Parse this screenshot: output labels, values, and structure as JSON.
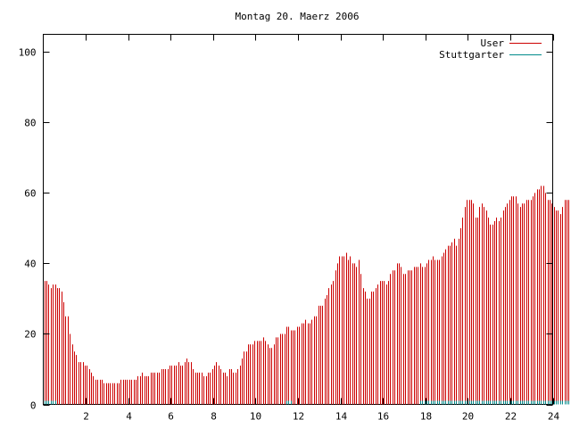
{
  "chart_data": {
    "type": "bar",
    "title": "Montag 20. Maerz 2006",
    "xlabel": "",
    "ylabel": "",
    "xlim": [
      0,
      24
    ],
    "ylim": [
      0,
      105
    ],
    "xticks": [
      2,
      4,
      6,
      8,
      10,
      12,
      14,
      16,
      18,
      20,
      22,
      24
    ],
    "yticks": [
      0,
      20,
      40,
      60,
      80,
      100
    ],
    "grid": false,
    "legend_position": "top-right",
    "series": [
      {
        "name": "User",
        "color": "#cc0000",
        "interval_hours": 0.1,
        "values": [
          35,
          35,
          34,
          33,
          34,
          34,
          33,
          33,
          32,
          29,
          25,
          25,
          20,
          17,
          15,
          14,
          12,
          12,
          12,
          11,
          11,
          10,
          9,
          8,
          7,
          7,
          7,
          7,
          6,
          6,
          6,
          6,
          6,
          6,
          6,
          6,
          7,
          7,
          7,
          7,
          7,
          7,
          7,
          7,
          8,
          8,
          9,
          8,
          8,
          8,
          9,
          9,
          9,
          9,
          9,
          10,
          10,
          10,
          10,
          11,
          11,
          11,
          11,
          12,
          11,
          11,
          12,
          13,
          12,
          12,
          10,
          9,
          9,
          9,
          9,
          8,
          8,
          9,
          9,
          10,
          11,
          12,
          11,
          10,
          9,
          9,
          8,
          10,
          10,
          9,
          9,
          10,
          11,
          13,
          15,
          15,
          17,
          17,
          17,
          18,
          18,
          18,
          18,
          19,
          18,
          17,
          16,
          16,
          17,
          19,
          19,
          20,
          20,
          20,
          22,
          22,
          21,
          21,
          21,
          22,
          22,
          23,
          23,
          24,
          23,
          23,
          24,
          25,
          25,
          28,
          28,
          28,
          30,
          31,
          33,
          34,
          35,
          38,
          40,
          42,
          42,
          42,
          43,
          41,
          42,
          40,
          40,
          39,
          41,
          37,
          33,
          32,
          30,
          30,
          32,
          32,
          33,
          34,
          35,
          35,
          35,
          34,
          35,
          37,
          38,
          38,
          40,
          40,
          39,
          37,
          37,
          38,
          38,
          38,
          39,
          39,
          39,
          40,
          39,
          39,
          40,
          41,
          41,
          42,
          41,
          41,
          41,
          42,
          43,
          44,
          45,
          45,
          46,
          47,
          45,
          47,
          50,
          53,
          56,
          58,
          58,
          58,
          57,
          53,
          53,
          56,
          57,
          56,
          55,
          53,
          51,
          51,
          52,
          53,
          52,
          53,
          55,
          56,
          57,
          58,
          59,
          59,
          59,
          57,
          56,
          57,
          57,
          58,
          58,
          58,
          59,
          60,
          61,
          61,
          62,
          62,
          60,
          58,
          58,
          57,
          56,
          55,
          55,
          54,
          56,
          58,
          58,
          58,
          59,
          59,
          60,
          59,
          58,
          59,
          60,
          60,
          61,
          62,
          61,
          60,
          60,
          61,
          62,
          63,
          64,
          64,
          65,
          64,
          63,
          63,
          62,
          61,
          59,
          57,
          55,
          53,
          52,
          50,
          48,
          46,
          44,
          41
        ]
      },
      {
        "name": "Stuttgarter",
        "color": "#008b8b",
        "interval_hours": 0.1,
        "values": [
          1,
          1,
          1,
          1,
          1,
          1,
          0,
          0,
          0,
          0,
          0,
          0,
          0,
          0,
          0,
          0,
          0,
          0,
          0,
          0,
          0,
          0,
          0,
          0,
          0,
          0,
          0,
          0,
          0,
          0,
          0,
          0,
          0,
          0,
          0,
          0,
          0,
          0,
          0,
          0,
          0,
          0,
          0,
          0,
          0,
          0,
          0,
          0,
          0,
          0,
          0,
          0,
          0,
          0,
          0,
          0,
          0,
          0,
          0,
          0,
          0,
          0,
          0,
          0,
          0,
          0,
          0,
          0,
          0,
          0,
          0,
          0,
          0,
          0,
          0,
          0,
          0,
          0,
          0,
          0,
          0,
          0,
          0,
          0,
          0,
          0,
          0,
          0,
          0,
          0,
          0,
          0,
          0,
          0,
          0,
          0,
          0,
          0,
          0,
          0,
          0,
          0,
          0,
          0,
          0,
          0,
          0,
          0,
          0,
          0,
          0,
          0,
          0,
          0,
          1,
          1,
          1,
          0,
          0,
          0,
          0,
          0,
          0,
          0,
          0,
          0,
          0,
          0,
          0,
          0,
          0,
          0,
          0,
          0,
          0,
          0,
          0,
          0,
          0,
          0,
          0,
          0,
          0,
          0,
          0,
          0,
          0,
          0,
          0,
          0,
          0,
          0,
          0,
          0,
          0,
          0,
          0,
          0,
          0,
          0,
          0,
          0,
          0,
          0,
          0,
          0,
          0,
          0,
          0,
          0,
          0,
          0,
          0,
          0,
          0,
          0,
          0,
          1,
          1,
          1,
          1,
          1,
          1,
          1,
          1,
          1,
          1,
          1,
          1,
          1,
          1,
          1,
          1,
          1,
          1,
          1,
          1,
          1,
          1,
          1,
          1,
          1,
          1,
          1,
          1,
          1,
          1,
          1,
          1,
          1,
          1,
          1,
          1,
          1,
          1,
          1,
          1,
          1,
          1,
          1,
          1,
          1,
          1,
          1,
          1,
          1,
          1,
          1,
          1,
          1,
          1,
          1,
          1,
          1,
          1,
          1,
          1,
          1,
          1,
          1,
          1,
          1,
          1,
          1,
          1,
          1,
          1,
          1,
          1,
          1,
          1,
          1,
          1,
          1,
          1,
          1,
          1,
          1,
          1,
          1,
          1,
          1,
          1,
          1,
          1
        ]
      }
    ]
  }
}
